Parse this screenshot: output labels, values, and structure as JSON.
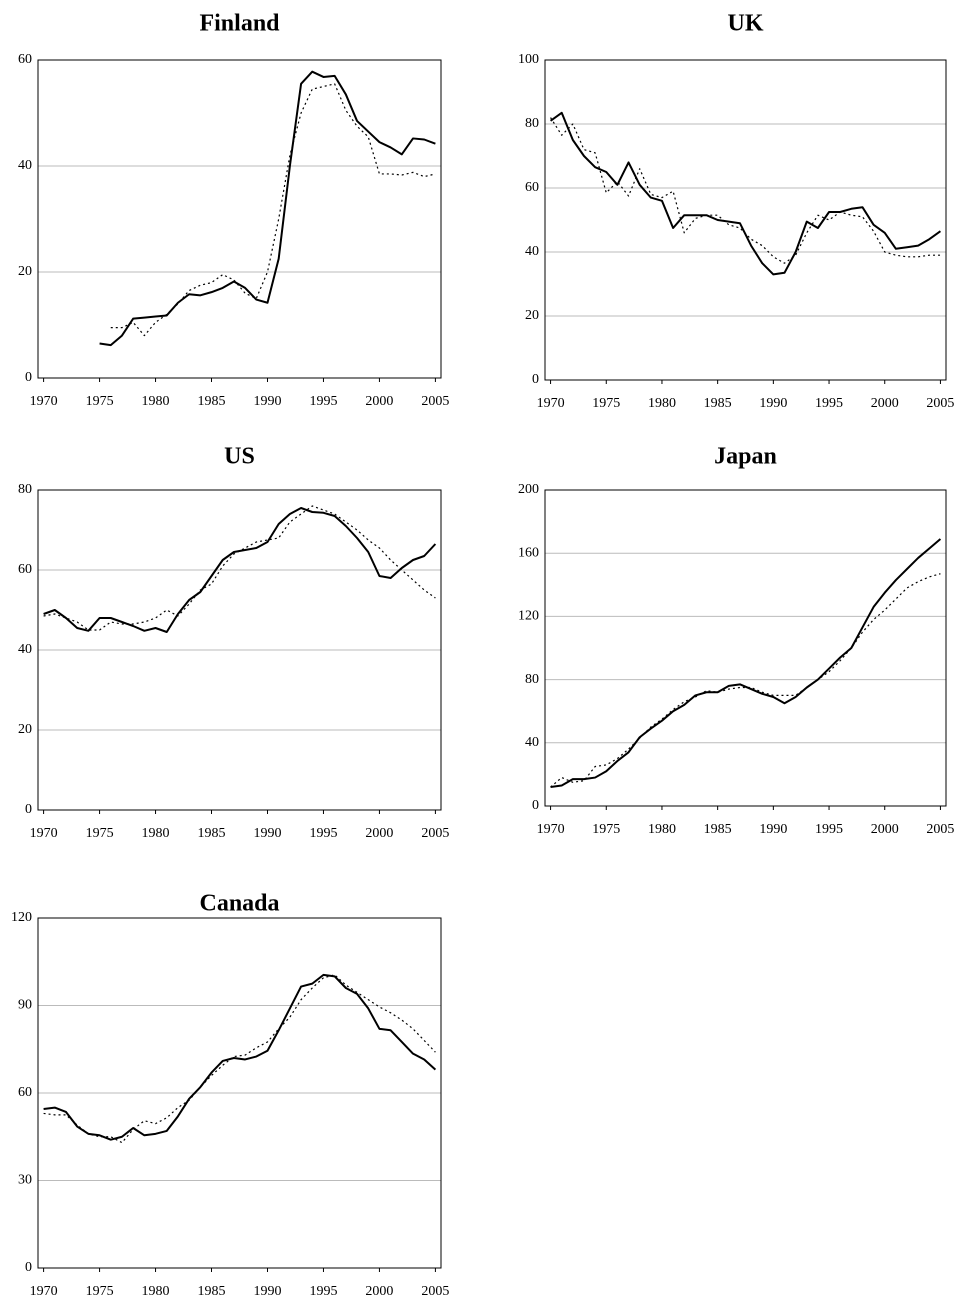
{
  "chart_data": [
    {
      "type": "line",
      "title": "Finland",
      "x": [
        1970,
        1971,
        1972,
        1973,
        1974,
        1975,
        1976,
        1977,
        1978,
        1979,
        1980,
        1981,
        1982,
        1983,
        1984,
        1985,
        1986,
        1987,
        1988,
        1989,
        1990,
        1991,
        1992,
        1993,
        1994,
        1995,
        1996,
        1997,
        1998,
        1999,
        2000,
        2001,
        2002,
        2003,
        2004,
        2005
      ],
      "series": [
        {
          "color": "#000000",
          "style": "solid",
          "values": [
            null,
            null,
            null,
            null,
            null,
            6.5,
            6.2,
            8,
            11.2,
            11.4,
            11.6,
            11.8,
            14.2,
            15.8,
            15.6,
            16.2,
            17,
            18.2,
            17,
            14.8,
            14.2,
            22.5,
            40,
            55.5,
            57.8,
            56.8,
            57,
            53.5,
            48.5,
            46.5,
            44.5,
            43.5,
            42.2,
            45.2,
            45,
            44.2
          ]
        },
        {
          "color": "#000000",
          "style": "dotted",
          "values": [
            null,
            null,
            null,
            null,
            null,
            null,
            9.5,
            9.5,
            10.5,
            8,
            10.5,
            12,
            14,
            16.5,
            17.5,
            18,
            19.5,
            18.5,
            16,
            15,
            20,
            30,
            42,
            50,
            54.5,
            55,
            55.5,
            50.5,
            47.5,
            45.5,
            38.5,
            38.5,
            38.3,
            38.8,
            38,
            38.5
          ]
        }
      ],
      "xlim": [
        1969.5,
        2005.5
      ],
      "xticks": [
        1970,
        1975,
        1980,
        1985,
        1990,
        1995,
        2000,
        2005
      ],
      "ylim": [
        0,
        60
      ],
      "yticks": [
        0,
        20,
        40,
        60
      ],
      "grid": true
    },
    {
      "type": "line",
      "title": "UK",
      "x": [
        1970,
        1971,
        1972,
        1973,
        1974,
        1975,
        1976,
        1977,
        1978,
        1979,
        1980,
        1981,
        1982,
        1983,
        1984,
        1985,
        1986,
        1987,
        1988,
        1989,
        1990,
        1991,
        1992,
        1993,
        1994,
        1995,
        1996,
        1997,
        1998,
        1999,
        2000,
        2001,
        2002,
        2003,
        2004,
        2005
      ],
      "series": [
        {
          "color": "#000000",
          "style": "solid",
          "values": [
            81,
            83.5,
            75,
            70,
            66.5,
            65,
            61,
            68,
            61,
            57,
            56,
            47.5,
            51.5,
            51.5,
            51.5,
            50,
            49.5,
            49,
            42,
            36.5,
            33,
            33.5,
            40,
            49.5,
            47.5,
            52.5,
            52.5,
            53.5,
            54,
            48.5,
            46,
            41,
            41.5,
            42,
            44,
            46.5
          ]
        },
        {
          "color": "#000000",
          "style": "dotted",
          "values": [
            82,
            76.5,
            80,
            72,
            71,
            58.5,
            62,
            57.5,
            66,
            58,
            57,
            59,
            46,
            50.5,
            51.5,
            51.5,
            48.5,
            47.5,
            44,
            42,
            38.5,
            36.5,
            39,
            46,
            51.5,
            50,
            52.5,
            51.5,
            51,
            46.5,
            40,
            39,
            38.5,
            38.5,
            39,
            39
          ]
        }
      ],
      "xlim": [
        1969.5,
        2005.5
      ],
      "xticks": [
        1970,
        1975,
        1980,
        1985,
        1990,
        1995,
        2000,
        2005
      ],
      "ylim": [
        0,
        100
      ],
      "yticks": [
        0,
        20,
        40,
        60,
        80,
        100
      ],
      "grid": true
    },
    {
      "type": "line",
      "title": "US",
      "x": [
        1970,
        1971,
        1972,
        1973,
        1974,
        1975,
        1976,
        1977,
        1978,
        1979,
        1980,
        1981,
        1982,
        1983,
        1984,
        1985,
        1986,
        1987,
        1988,
        1989,
        1990,
        1991,
        1992,
        1993,
        1994,
        1995,
        1996,
        1997,
        1998,
        1999,
        2000,
        2001,
        2002,
        2003,
        2004,
        2005
      ],
      "series": [
        {
          "color": "#000000",
          "style": "solid",
          "values": [
            49,
            50,
            48,
            45.5,
            44.8,
            48,
            48,
            47,
            46,
            44.8,
            45.5,
            44.5,
            49,
            52.5,
            54.5,
            58.5,
            62.5,
            64.5,
            65,
            65.5,
            67,
            71.5,
            74,
            75.5,
            74.5,
            74.3,
            73.5,
            71,
            68,
            64.5,
            58.5,
            58,
            60.5,
            62.5,
            63.5,
            66.5
          ]
        },
        {
          "color": "#000000",
          "style": "dotted",
          "values": [
            48.5,
            49,
            48,
            47,
            45,
            45,
            47,
            46.5,
            46.5,
            47,
            48,
            50,
            48.5,
            51.5,
            55,
            56.5,
            61,
            64,
            65.5,
            67,
            67.5,
            68,
            72,
            74,
            76,
            75,
            74,
            72,
            70,
            67.5,
            65.5,
            62.5,
            60,
            57.5,
            55,
            53
          ]
        }
      ],
      "xlim": [
        1969.5,
        2005.5
      ],
      "xticks": [
        1970,
        1975,
        1980,
        1985,
        1990,
        1995,
        2000,
        2005
      ],
      "ylim": [
        0,
        80
      ],
      "yticks": [
        0,
        20,
        40,
        60,
        80
      ],
      "grid": true
    },
    {
      "type": "line",
      "title": "Japan",
      "x": [
        1970,
        1971,
        1972,
        1973,
        1974,
        1975,
        1976,
        1977,
        1978,
        1979,
        1980,
        1981,
        1982,
        1983,
        1984,
        1985,
        1986,
        1987,
        1988,
        1989,
        1990,
        1991,
        1992,
        1993,
        1994,
        1995,
        1996,
        1997,
        1998,
        1999,
        2000,
        2001,
        2002,
        2003,
        2004,
        2005
      ],
      "series": [
        {
          "color": "#000000",
          "style": "solid",
          "values": [
            12,
            13,
            17,
            17,
            18,
            22,
            28.5,
            34,
            43.5,
            49,
            54,
            60,
            64,
            70,
            72,
            72,
            76,
            77,
            74,
            71,
            69,
            65,
            69,
            75,
            80,
            87,
            94,
            100,
            113,
            126,
            135,
            143,
            150,
            157,
            163,
            169
          ]
        },
        {
          "color": "#000000",
          "style": "dotted",
          "values": [
            12,
            18,
            15,
            16,
            25,
            26,
            30,
            36,
            43,
            50,
            55,
            61,
            66,
            69,
            73,
            72,
            74,
            75,
            75,
            72,
            70,
            70,
            70,
            75,
            80,
            85,
            92,
            100,
            110,
            118,
            124,
            131,
            138,
            142,
            145,
            147
          ]
        }
      ],
      "xlim": [
        1969.5,
        2005.5
      ],
      "xticks": [
        1970,
        1975,
        1980,
        1985,
        1990,
        1995,
        2000,
        2005
      ],
      "ylim": [
        0,
        200
      ],
      "yticks": [
        0,
        40,
        80,
        120,
        160,
        200
      ],
      "grid": true
    },
    {
      "type": "line",
      "title": "Canada",
      "x": [
        1970,
        1971,
        1972,
        1973,
        1974,
        1975,
        1976,
        1977,
        1978,
        1979,
        1980,
        1981,
        1982,
        1983,
        1984,
        1985,
        1986,
        1987,
        1988,
        1989,
        1990,
        1991,
        1992,
        1993,
        1994,
        1995,
        1996,
        1997,
        1998,
        1999,
        2000,
        2001,
        2002,
        2003,
        2004,
        2005
      ],
      "series": [
        {
          "color": "#000000",
          "style": "solid",
          "values": [
            54.5,
            55,
            53.5,
            48.5,
            46,
            45.5,
            44,
            45,
            48,
            45.5,
            46,
            47,
            52,
            58,
            62,
            67,
            71,
            72,
            71.5,
            72.5,
            74.5,
            81.5,
            89,
            96.5,
            97.5,
            100.5,
            100,
            96,
            94,
            89,
            82,
            81.5,
            77.5,
            73.5,
            71.5,
            68
          ]
        },
        {
          "color": "#000000",
          "style": "dotted",
          "values": [
            53,
            52.5,
            52.5,
            49,
            46,
            45,
            45,
            43,
            47.5,
            50.5,
            49.5,
            51.5,
            55,
            57.5,
            62,
            66,
            69.5,
            72.5,
            73,
            75.5,
            77.5,
            82,
            86,
            92,
            96,
            99.5,
            100.5,
            97,
            94.5,
            92,
            89.5,
            87.5,
            85,
            82,
            78,
            74
          ]
        }
      ],
      "xlim": [
        1969.5,
        2005.5
      ],
      "xticks": [
        1970,
        1975,
        1980,
        1985,
        1990,
        1995,
        2000,
        2005
      ],
      "ylim": [
        0,
        120
      ],
      "yticks": [
        0,
        30,
        60,
        90,
        120
      ],
      "grid": true
    }
  ]
}
